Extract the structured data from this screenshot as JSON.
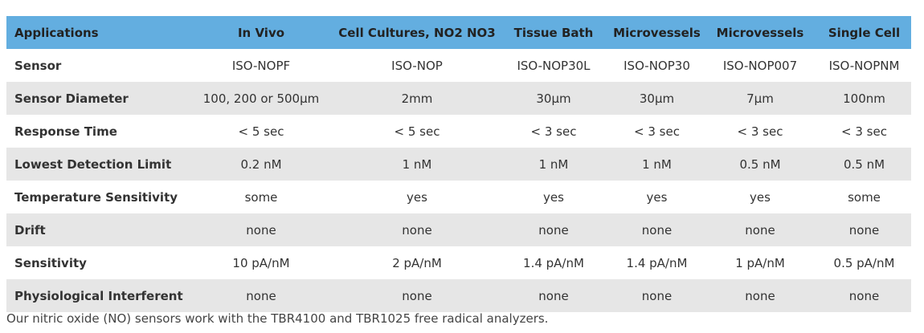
{
  "table": {
    "header": [
      "Applications",
      "In Vivo",
      "Cell Cultures, NO2 NO3",
      "Tissue Bath",
      "Microvessels",
      "Microvessels",
      "Single Cell"
    ],
    "rows": [
      [
        "Sensor",
        "ISO-NOPF",
        "ISO-NOP",
        "ISO-NOP30L",
        "ISO-NOP30",
        "ISO-NOP007",
        "ISO-NOPNM"
      ],
      [
        "Sensor Diameter",
        "100, 200 or 500μm",
        "2mm",
        "30μm",
        "30μm",
        "7μm",
        "100nm"
      ],
      [
        "Response Time",
        "< 5 sec",
        "< 5 sec",
        "< 3 sec",
        "< 3 sec",
        "< 3 sec",
        "< 3 sec"
      ],
      [
        "Lowest Detection Limit",
        "0.2 nM",
        "1 nM",
        "1 nM",
        "1 nM",
        "0.5 nM",
        "0.5 nM"
      ],
      [
        "Temperature Sensitivity",
        "some",
        "yes",
        "yes",
        "yes",
        "yes",
        "some"
      ],
      [
        "Drift",
        "none",
        "none",
        "none",
        "none",
        "none",
        "none"
      ],
      [
        "Sensitivity",
        "10 pA/nM",
        "2 pA/nM",
        "1.4 pA/nM",
        "1.4 pA/nM",
        "1 pA/nM",
        "0.5 pA/nM"
      ],
      [
        "Physiological Interferent",
        "none",
        "none",
        "none",
        "none",
        "none",
        "none"
      ]
    ]
  },
  "footer": "Our nitric oxide (NO) sensors work with the TBR4100 and TBR1025 free radical analyzers."
}
